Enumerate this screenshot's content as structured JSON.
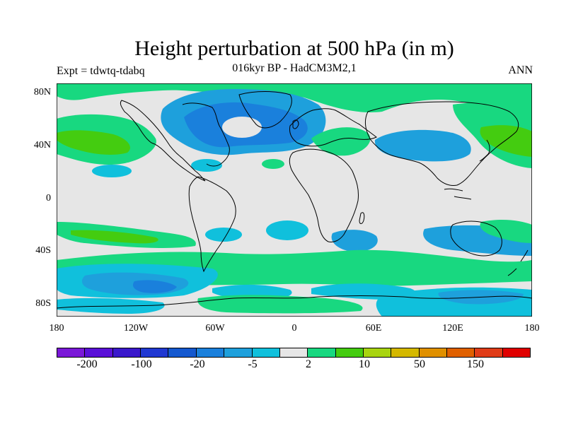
{
  "title": "Height perturbation at 500 hPa (in m)",
  "subtitle": "016kyr BP - HadCM3M2,1",
  "left_label": "Expt = tdwtq-tdabq",
  "right_label": "ANN",
  "map": {
    "projection": "equirectangular",
    "background_color": "#e6e6e6",
    "coastline_color": "#000000",
    "lat_ticks": [
      "80N",
      "40N",
      "0",
      "40S",
      "80S"
    ],
    "lon_ticks": [
      "180",
      "120W",
      "60W",
      "0",
      "60E",
      "120E",
      "180"
    ]
  },
  "colorbar": {
    "colors": [
      "#7a18d8",
      "#5a10d8",
      "#3a18cc",
      "#2038d2",
      "#1458cf",
      "#1a80dc",
      "#1ea0dc",
      "#10c0dc",
      "#e6e6e6",
      "#18d880",
      "#44cc10",
      "#a8d410",
      "#d4b800",
      "#e09000",
      "#e06000",
      "#e03c18",
      "#e00000"
    ],
    "labels": [
      "-200",
      "-100",
      "-20",
      "-5",
      "2",
      "10",
      "50",
      "150"
    ]
  },
  "palette": {
    "blue_dark": "#1a80dc",
    "blue": "#1ea0dc",
    "cyan": "#10c0dc",
    "green": "#18d880",
    "green_dark": "#44cc10"
  }
}
